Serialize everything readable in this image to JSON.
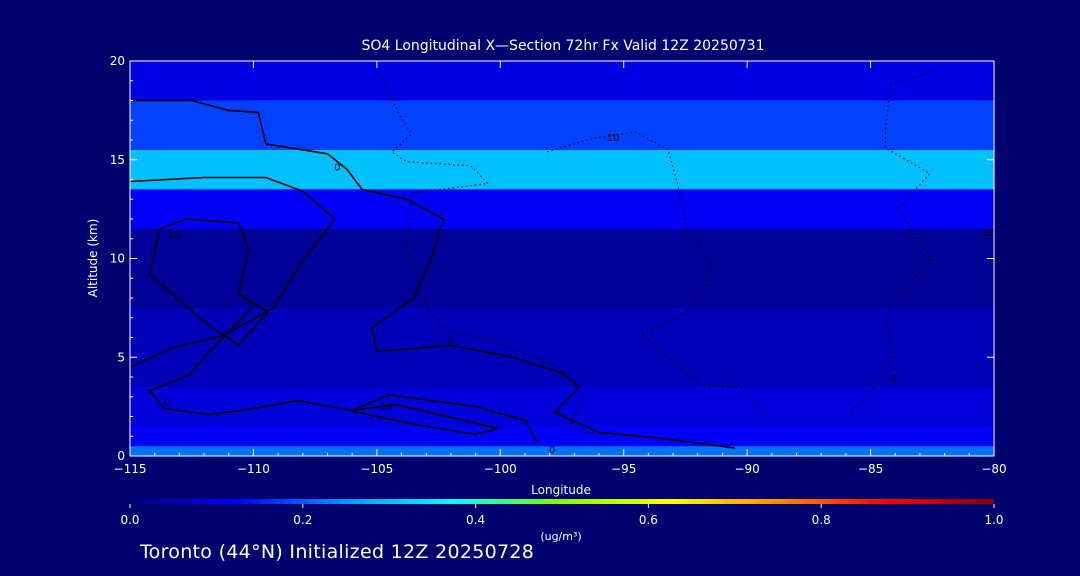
{
  "chart_data": {
    "type": "heatmap",
    "title": "SO4 Longitudinal X—Section 72hr  Fx Valid 12Z 20250731",
    "xlabel": "Longitude",
    "ylabel": "Altitude (km)",
    "xlim": [
      -115,
      -80
    ],
    "ylim": [
      0,
      20
    ],
    "x_ticks": [
      -115,
      -110,
      -105,
      -100,
      -95,
      -90,
      -85,
      -80
    ],
    "y_ticks": [
      0,
      5,
      10,
      15,
      20
    ],
    "grid": false,
    "colorbar": {
      "ticks": [
        0.0,
        0.2,
        0.4,
        0.6,
        0.8,
        1.0
      ],
      "tick_labels": [
        "0.0",
        "0.2",
        "0.4",
        "0.6",
        "0.8",
        "1.0"
      ],
      "unit_label": "(ug/m³)",
      "colors": [
        "#000078",
        "#0000ff",
        "#0096ff",
        "#00ffff",
        "#7fff00",
        "#ffff00",
        "#ff8c00",
        "#ff0000",
        "#800000"
      ]
    },
    "field_bands": [
      {
        "alt_range": [
          0,
          0.5
        ],
        "value": 0.22
      },
      {
        "alt_range": [
          0.5,
          1.5
        ],
        "value": 0.12
      },
      {
        "alt_range": [
          1.5,
          3.5
        ],
        "value": 0.09
      },
      {
        "alt_range": [
          3.5,
          7.5
        ],
        "value": 0.06
      },
      {
        "alt_range": [
          7.5,
          11.5
        ],
        "value": 0.03
      },
      {
        "alt_range": [
          11.5,
          13.5
        ],
        "value": 0.12
      },
      {
        "alt_range": [
          13.5,
          15.5
        ],
        "value": 0.3
      },
      {
        "alt_range": [
          15.5,
          18
        ],
        "value": 0.18
      },
      {
        "alt_range": [
          18,
          20
        ],
        "value": 0.1
      }
    ],
    "contour_labels": [
      {
        "text": "0",
        "lon": -106.6,
        "alt": 14.6
      },
      {
        "text": "10",
        "lon": -113.2,
        "alt": 11.2
      },
      {
        "text": "0",
        "lon": -102,
        "alt": 5.8
      },
      {
        "text": "0",
        "lon": -113.5,
        "alt": 2.7
      },
      {
        "text": "10",
        "lon": -104.6,
        "alt": 2.5
      },
      {
        "text": "0",
        "lon": -97.9,
        "alt": 0.3
      },
      {
        "text": "-10",
        "lon": -95.5,
        "alt": 16.1
      },
      {
        "text": "-10",
        "lon": -80.3,
        "alt": 11.3
      },
      {
        "text": "-5",
        "lon": -84.1,
        "alt": 3.9
      }
    ],
    "contours": [
      {
        "style": "solid",
        "points": [
          [
            -115,
            18
          ],
          [
            -112.5,
            18
          ],
          [
            -111,
            17.5
          ],
          [
            -109.8,
            17.4
          ],
          [
            -109.5,
            15.8
          ],
          [
            -107,
            15.3
          ],
          [
            -106.2,
            14.5
          ],
          [
            -105.6,
            13.5
          ],
          [
            -103.8,
            13
          ],
          [
            -102.3,
            12
          ],
          [
            -102.8,
            10
          ],
          [
            -103.5,
            8
          ],
          [
            -105.2,
            6.5
          ],
          [
            -105,
            5.3
          ],
          [
            -102,
            5.6
          ],
          [
            -99.5,
            5
          ],
          [
            -97.5,
            4.2
          ],
          [
            -96.8,
            3.5
          ],
          [
            -97.8,
            2.2
          ],
          [
            -96,
            1.2
          ],
          [
            -93.5,
            0.9
          ],
          [
            -90.5,
            0.4
          ]
        ]
      },
      {
        "style": "solid",
        "points": [
          [
            -115,
            13.9
          ],
          [
            -112,
            14.1
          ],
          [
            -109.5,
            14.1
          ],
          [
            -108,
            13.4
          ],
          [
            -106.7,
            12
          ],
          [
            -108,
            9.9
          ],
          [
            -109.2,
            7.5
          ],
          [
            -111.2,
            6.1
          ],
          [
            -113.2,
            5.5
          ],
          [
            -115,
            4.5
          ]
        ]
      },
      {
        "style": "solid",
        "points": [
          [
            -113.8,
            11.5
          ],
          [
            -112.7,
            12
          ],
          [
            -110.6,
            11.8
          ],
          [
            -110.2,
            10.5
          ],
          [
            -110.6,
            8.2
          ],
          [
            -109.4,
            7.3
          ],
          [
            -110.6,
            5.6
          ],
          [
            -112,
            6.8
          ],
          [
            -114.2,
            9.2
          ],
          [
            -113.8,
            11.5
          ]
        ]
      },
      {
        "style": "solid",
        "points": [
          [
            -110,
            7.6
          ],
          [
            -112,
            5
          ],
          [
            -112.6,
            4.1
          ],
          [
            -114.2,
            3.3
          ],
          [
            -113.6,
            2.4
          ],
          [
            -111.8,
            2.1
          ],
          [
            -110.5,
            2.3
          ],
          [
            -108.2,
            2.8
          ],
          [
            -106,
            2.3
          ],
          [
            -104.5,
            3.1
          ],
          [
            -101,
            2.5
          ],
          [
            -99,
            1.8
          ],
          [
            -98.5,
            0.7
          ]
        ]
      },
      {
        "style": "solid",
        "points": [
          [
            -106.1,
            2.3
          ],
          [
            -104.2,
            2.6
          ],
          [
            -101.5,
            1.8
          ],
          [
            -100.1,
            1.4
          ],
          [
            -101,
            1.1
          ],
          [
            -103.5,
            1.6
          ],
          [
            -106.1,
            2.3
          ]
        ]
      },
      {
        "style": "dotted",
        "points": [
          [
            -104.9,
            19.5
          ],
          [
            -104.1,
            17.3
          ],
          [
            -103.6,
            16.3
          ],
          [
            -104.4,
            15.4
          ],
          [
            -103.8,
            14.9
          ],
          [
            -101.2,
            14.7
          ],
          [
            -100.5,
            13.8
          ],
          [
            -103.6,
            13.3
          ],
          [
            -103.8,
            10.5
          ],
          [
            -103,
            7.6
          ],
          [
            -102.3,
            6.4
          ],
          [
            -100.3,
            5.8
          ],
          [
            -97.6,
            4.5
          ],
          [
            -96.6,
            3.1
          ],
          [
            -97.2,
            1.3
          ],
          [
            -95.8,
            1.1
          ]
        ]
      },
      {
        "style": "dotted",
        "points": [
          [
            -98.1,
            15.4
          ],
          [
            -96.2,
            16.1
          ],
          [
            -94.5,
            16.4
          ],
          [
            -93.2,
            15.5
          ],
          [
            -92.8,
            13.7
          ],
          [
            -92.4,
            11.2
          ],
          [
            -91.4,
            9.6
          ],
          [
            -91.9,
            8.3
          ],
          [
            -92.5,
            7.2
          ],
          [
            -94.3,
            6.2
          ],
          [
            -93.1,
            4.9
          ],
          [
            -91.9,
            3.6
          ],
          [
            -90.3,
            3.5
          ],
          [
            -89.2,
            2.1
          ]
        ]
      },
      {
        "style": "dotted",
        "points": [
          [
            -82.4,
            19.5
          ],
          [
            -84.2,
            18.8
          ],
          [
            -84.4,
            16.5
          ],
          [
            -84.4,
            15.6
          ],
          [
            -82.6,
            14.3
          ],
          [
            -83.9,
            12.5
          ],
          [
            -82.5,
            9.9
          ],
          [
            -84.4,
            7.5
          ],
          [
            -84.1,
            5
          ],
          [
            -84.9,
            3.4
          ],
          [
            -85.8,
            2.2
          ]
        ]
      }
    ]
  },
  "footer": {
    "caption": "Toronto (44°N) Initialized 12Z 20250728"
  }
}
